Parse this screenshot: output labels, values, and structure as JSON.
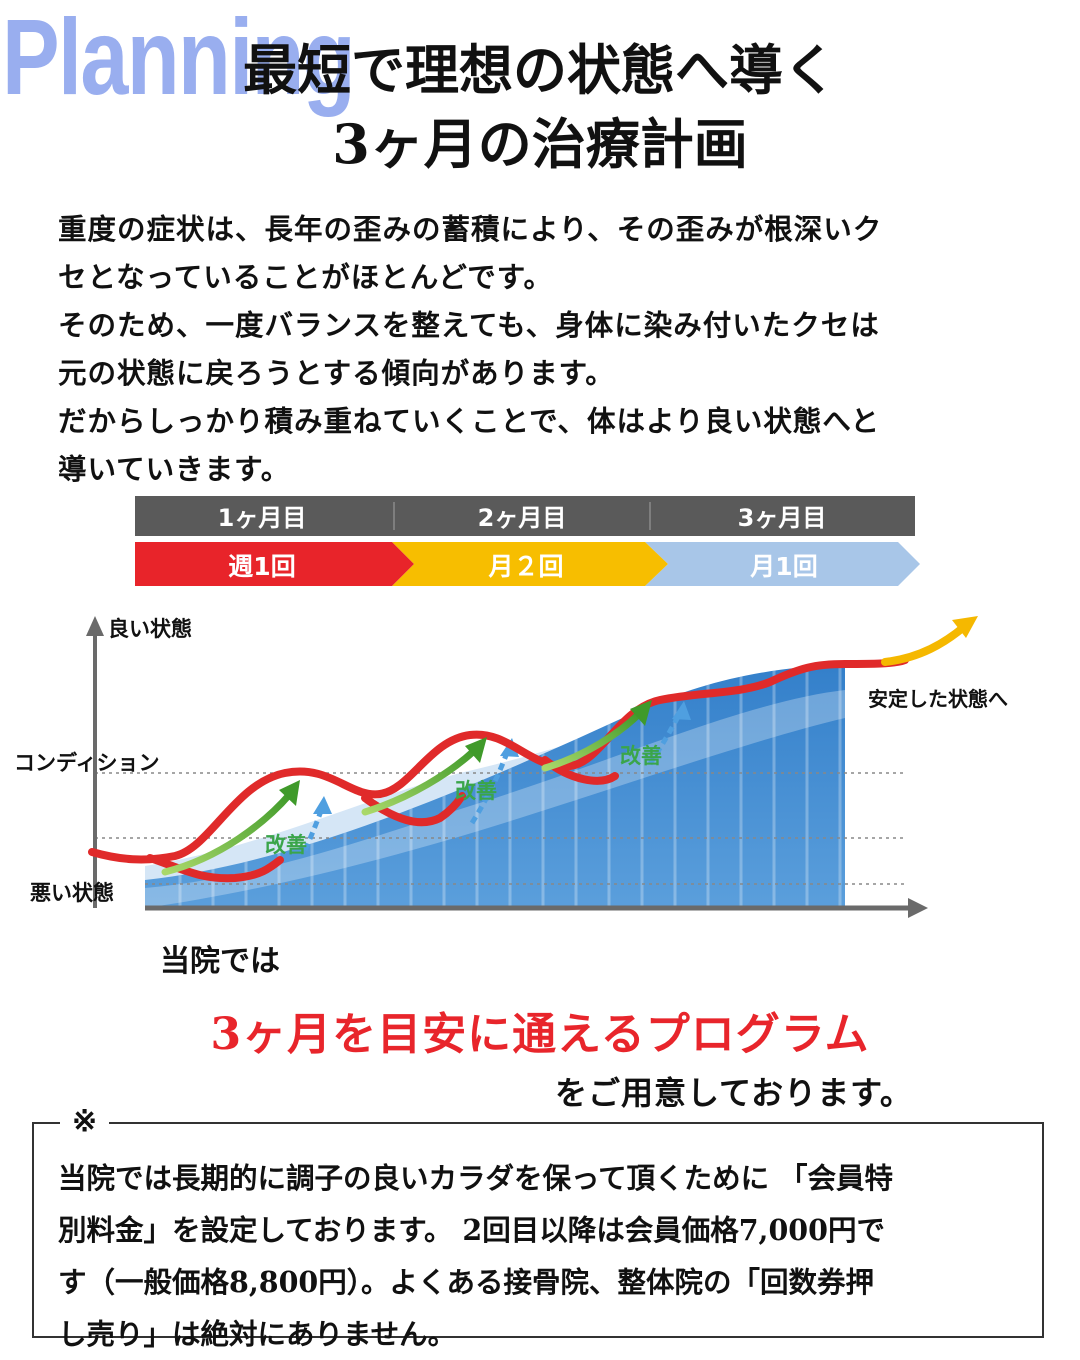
{
  "decoration": {
    "word": "Planning"
  },
  "header": {
    "title_line1": "最短で理想の状態へ導く",
    "title_line2": "3ヶ月の治療計画"
  },
  "intro_lines": [
    "重度の症状は、長年の歪みの蓄積により、その歪みが根深いク",
    "セとなっていることがほとんどです。",
    "そのため、一度バランスを整えても、身体に染み付いたクセは",
    "元の状態に戻ろうとする傾向があります。",
    "だからしっかり積み重ねていくことで、体はより良い状態へと",
    "導いていきます。"
  ],
  "diagram": {
    "months": [
      "1ヶ月目",
      "2ヶ月目",
      "3ヶ月目"
    ],
    "frequencies": [
      "週1回",
      "月２回",
      "月1回"
    ],
    "y_top_label": "良い状態",
    "y_axis_label": "コンディション",
    "y_bottom_label": "悪い状態",
    "end_label": "安定した状態へ",
    "improve_label": "改善",
    "colors": {
      "header_bar": "#5a5a5a",
      "phase1": "#e8242a",
      "phase2": "#f7be00",
      "phase3": "#a8c6e8",
      "curve": "#e02a2a",
      "curve_end": "#f5b800",
      "improve_arrow": "#5ca834",
      "improve_text": "#3aa54a",
      "area_dark": "#3f86cc",
      "area_light": "#cfe1f3"
    }
  },
  "program": {
    "lead": "当院では",
    "highlight": "3ヶ月を目安に通えるプログラム",
    "tail": "をご用意しております。"
  },
  "note": {
    "mark": "※",
    "lines": [
      "当院では長期的に調子の良いカラダを保って頂くために 「会員特",
      "別料金」を設定しております。 2回目以降は会員価格7,000円で",
      "す（一般価格8,800円）。よくある接骨院、整体院の「回数券押",
      "し売り」は絶対にありません。"
    ]
  }
}
